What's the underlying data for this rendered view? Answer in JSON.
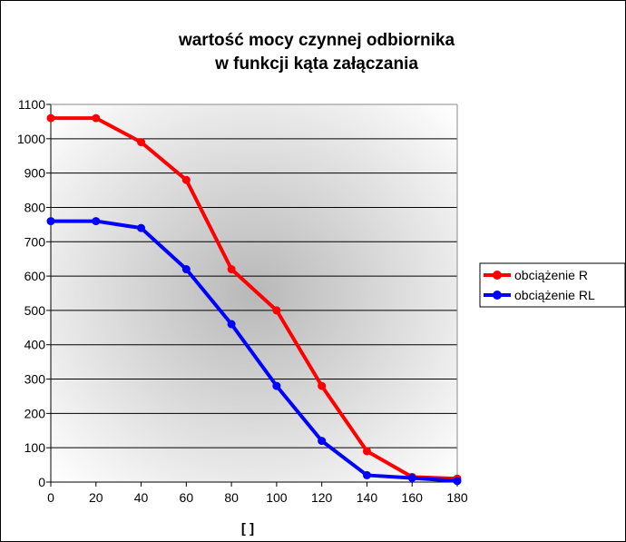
{
  "chart_data": {
    "type": "line",
    "title_lines": [
      "wartość mocy czynnej odbiornika",
      "w funkcji kąta załączania"
    ],
    "xlabel": "[ ]",
    "ylabel": "",
    "x": [
      0,
      20,
      40,
      60,
      80,
      100,
      120,
      140,
      160,
      180
    ],
    "xticks": [
      0,
      20,
      40,
      60,
      80,
      100,
      120,
      140,
      160,
      180
    ],
    "yticks": [
      0,
      100,
      200,
      300,
      400,
      500,
      600,
      700,
      800,
      900,
      1000,
      1100
    ],
    "xlim": [
      0,
      180
    ],
    "ylim": [
      0,
      1100
    ],
    "grid": "horizontal",
    "legend_position": "right",
    "series": [
      {
        "name": "obciążenie R",
        "color": "#ff0000",
        "values": [
          1060,
          1060,
          990,
          880,
          620,
          500,
          280,
          90,
          15,
          10
        ]
      },
      {
        "name": "obciążenie RL",
        "color": "#0000ff",
        "values": [
          760,
          760,
          740,
          620,
          460,
          280,
          120,
          20,
          12,
          3
        ]
      }
    ]
  }
}
